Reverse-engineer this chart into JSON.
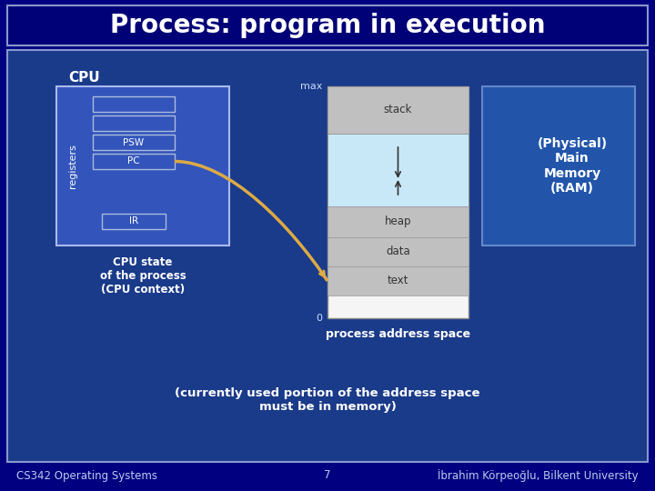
{
  "bg_dark": "#000080",
  "bg_content": "#1a3a8a",
  "title": "Process: program in execution",
  "title_color": "#ffffff",
  "title_fontsize": 20,
  "footer_left": "CS342 Operating Systems",
  "footer_center": "7",
  "footer_right": "İbrahim Körpeoğlu, Bilkent University",
  "footer_color": "#bbccee",
  "footer_fontsize": 8.5,
  "cpu_label": "CPU",
  "cpu_box_color": "#3355bb",
  "cpu_box_border": "#aabbee",
  "registers_label": "registers",
  "psw_label": "PSW",
  "pc_label": "PC",
  "ir_label": "IR",
  "cpu_state_text": "CPU state\nof the process\n(CPU context)",
  "ram_label": "(Physical)\nMain\nMemory\n(RAM)",
  "ram_color": "#2255aa",
  "ram_border": "#6688cc",
  "mem_bg": "#f0f0f0",
  "stack_color": "#c0c0c0",
  "heap_color": "#c8e8f8",
  "max_label": "max",
  "zero_label": "0",
  "stack_label": "stack",
  "heap_label": "heap",
  "data_label": "data",
  "text_label": "text",
  "process_addr_label": "process address space",
  "currently_text": "(currently used portion of the address space\nmust be in memory)",
  "arrow_color": "#ddaa44"
}
